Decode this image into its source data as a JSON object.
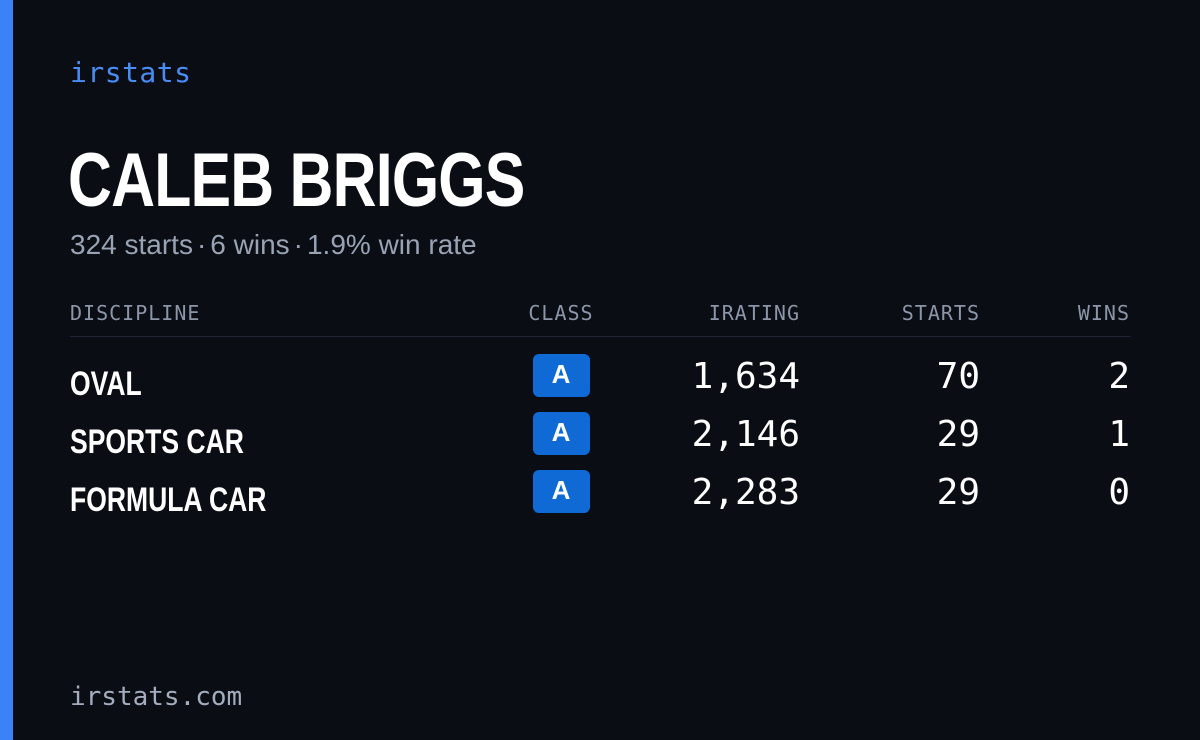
{
  "brand": "irstats",
  "accent_color": "#3b82f6",
  "player": {
    "name": "CALEB BRIGGS",
    "starts": "324 starts",
    "wins": "6 wins",
    "win_rate": "1.9% win rate",
    "separator": "·"
  },
  "table": {
    "headers": {
      "discipline": "DISCIPLINE",
      "class": "CLASS",
      "irating": "IRATING",
      "starts": "STARTS",
      "wins": "WINS"
    },
    "rows": [
      {
        "discipline": "OVAL",
        "class": "A",
        "irating": "1,634",
        "starts": "70",
        "wins": "2"
      },
      {
        "discipline": "SPORTS CAR",
        "class": "A",
        "irating": "2,146",
        "starts": "29",
        "wins": "1"
      },
      {
        "discipline": "FORMULA CAR",
        "class": "A",
        "irating": "2,283",
        "starts": "29",
        "wins": "0"
      }
    ]
  },
  "footer": {
    "site": "irstats.com"
  }
}
